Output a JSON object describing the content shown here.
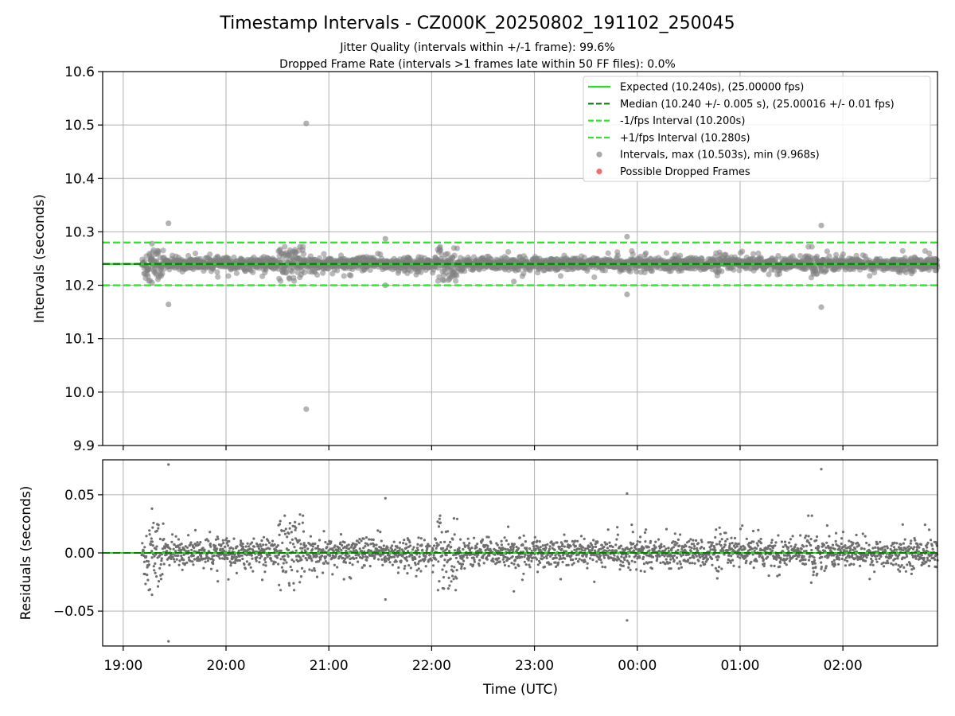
{
  "chart_data": {
    "title": "Timestamp Intervals - CZ000K_20250802_191102_250045",
    "subtitle_lines": [
      "Jitter Quality (intervals within +/-1 frame): 99.6%",
      "Dropped Frame Rate (intervals >1 frames late within 50 FF files): 0.0%"
    ],
    "xlabel": "Time (UTC)",
    "x_ticks": [
      "19:00",
      "20:00",
      "21:00",
      "22:00",
      "23:00",
      "00:00",
      "01:00",
      "02:00"
    ],
    "x_range_hours": [
      18.8,
      26.92
    ],
    "grid": true,
    "top_panel": {
      "type": "scatter",
      "ylabel": "Intervals (seconds)",
      "ylim": [
        9.9,
        10.6
      ],
      "y_ticks": [
        "9.9",
        "10.0",
        "10.1",
        "10.2",
        "10.3",
        "10.4",
        "10.5",
        "10.6"
      ],
      "expected": 10.24,
      "median": 10.24,
      "lower": 10.2,
      "upper": 10.28,
      "outliers": [
        {
          "t": 19.44,
          "y": 10.316
        },
        {
          "t": 19.44,
          "y": 10.164
        },
        {
          "t": 20.78,
          "y": 10.503
        },
        {
          "t": 20.78,
          "y": 9.968
        },
        {
          "t": 21.55,
          "y": 10.287
        },
        {
          "t": 23.9,
          "y": 10.291
        },
        {
          "t": 23.9,
          "y": 10.183
        },
        {
          "t": 25.79,
          "y": 10.312
        },
        {
          "t": 25.79,
          "y": 10.159
        },
        {
          "t": 19.28,
          "y": 10.278
        },
        {
          "t": 19.28,
          "y": 10.205
        },
        {
          "t": 20.72,
          "y": 10.272
        },
        {
          "t": 21.55,
          "y": 10.2
        },
        {
          "t": 22.8,
          "y": 10.207
        }
      ],
      "legend": {
        "placement": "top-right",
        "entries": [
          {
            "label": "Expected (10.240s), (25.00000 fps)",
            "style": "solid",
            "color": "#22dd22"
          },
          {
            "label": "Median (10.240 +/- 0.005 s), (25.00016 +/- 0.01 fps)",
            "style": "dashed",
            "color": "#0b7d0b"
          },
          {
            "label": "-1/fps Interval (10.200s)",
            "style": "dashed",
            "color": "#22ee22"
          },
          {
            "label": "+1/fps Interval (10.280s)",
            "style": "dashed",
            "color": "#22ee22"
          },
          {
            "label": "Intervals, max (10.503s), min (9.968s)",
            "style": "marker",
            "color": "#9a9a9a"
          },
          {
            "label": "Possible Dropped Frames",
            "style": "marker",
            "color": "#ee5555"
          }
        ]
      }
    },
    "bottom_panel": {
      "type": "scatter",
      "ylabel": "Residuals (seconds)",
      "ylim": [
        -0.08,
        0.08
      ],
      "y_ticks": [
        "−0.05",
        "0.00",
        "0.05"
      ],
      "y_tick_values": [
        -0.05,
        0.0,
        0.05
      ],
      "zero_line": 0.0,
      "outliers": [
        {
          "t": 19.44,
          "y": 0.076
        },
        {
          "t": 19.44,
          "y": -0.076
        },
        {
          "t": 20.78,
          "y": 0.0
        },
        {
          "t": 21.55,
          "y": 0.047
        },
        {
          "t": 21.55,
          "y": -0.04
        },
        {
          "t": 23.9,
          "y": 0.051
        },
        {
          "t": 23.9,
          "y": -0.058
        },
        {
          "t": 25.79,
          "y": 0.072
        },
        {
          "t": 19.28,
          "y": 0.038
        },
        {
          "t": 19.28,
          "y": -0.036
        },
        {
          "t": 22.8,
          "y": -0.033
        },
        {
          "t": 20.72,
          "y": 0.033
        }
      ]
    },
    "series_summary": {
      "bulk_start_hours": 19.18,
      "bulk_end_hours": 26.92,
      "bulk_count": 2700,
      "typical_spread_s": 0.006,
      "burst_regions_hours": [
        [
          19.2,
          19.4
        ],
        [
          20.5,
          20.75
        ],
        [
          22.05,
          22.25
        ],
        [
          25.65,
          25.75
        ]
      ]
    },
    "colors": {
      "points": "#808080",
      "expected": "#22dd22",
      "median": "#0b7d0b",
      "bounds": "#22ee22"
    }
  }
}
